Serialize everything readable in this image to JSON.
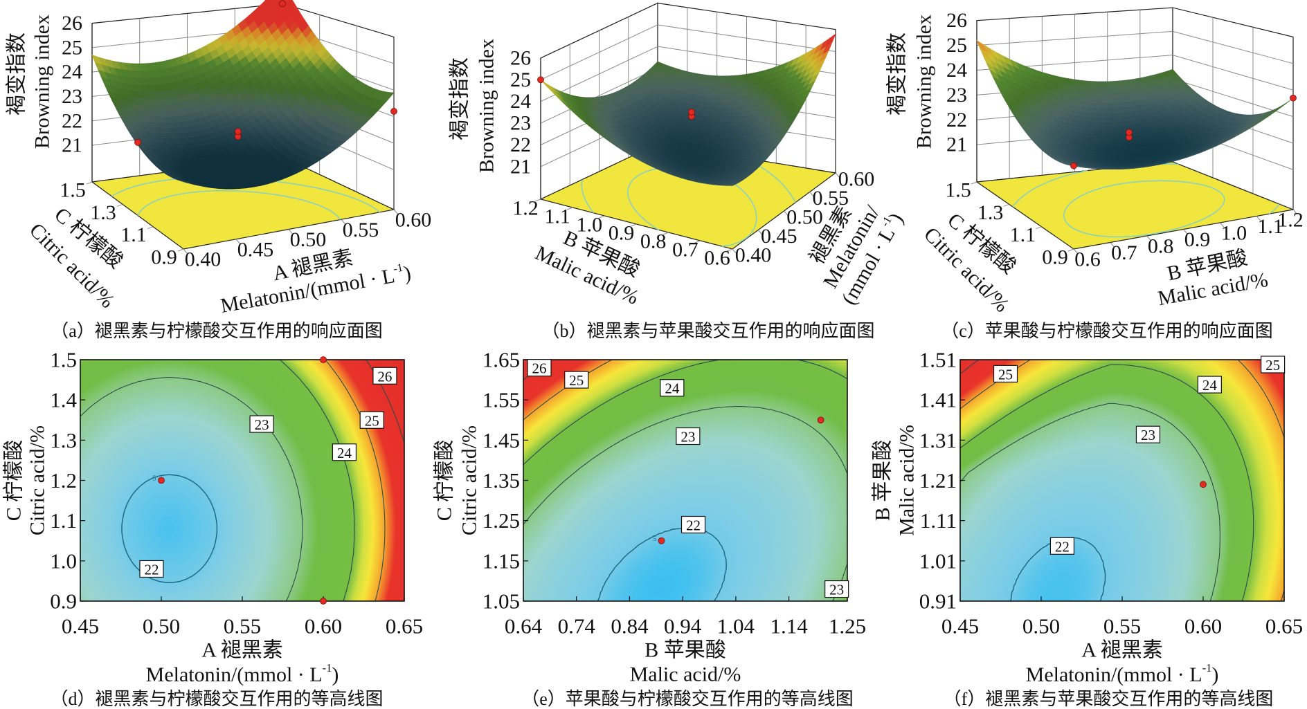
{
  "figure": {
    "colorscale": [
      [
        21.5,
        "#3cbff0"
      ],
      [
        22.1,
        "#7fcde6"
      ],
      [
        22.6,
        "#9dd5cf"
      ],
      [
        23.0,
        "#8cca86"
      ],
      [
        23.3,
        "#72bd46"
      ],
      [
        24.0,
        "#76be44"
      ],
      [
        24.3,
        "#cfe042"
      ],
      [
        24.6,
        "#f7e63a"
      ],
      [
        25.0,
        "#f6a32e"
      ],
      [
        25.35,
        "#e8332b"
      ],
      [
        28,
        "#e02a28"
      ]
    ],
    "floor_color": "#f1e63e",
    "floor_contour_color": "#8cd0c2",
    "point_color": "#e02a22"
  },
  "chart_data": [
    {
      "type": "surface",
      "caption": {
        "tag": "（a）",
        "text": "褪黑素与柠檬酸交互作用的响应面图"
      },
      "z_axis": {
        "label_cn": "褐变指数",
        "label_en": "Browning index",
        "ticks": [
          "21",
          "22",
          "23",
          "24",
          "25",
          "26"
        ],
        "range": [
          21,
          26
        ]
      },
      "x_axis": {
        "label_cn": "A 褪黑素",
        "label_en": {
          "pre": "Melatonin/(mmol · L",
          "sup": "-1",
          "post": ")"
        },
        "ticks": [
          "0.40",
          "0.45",
          "0.50",
          "0.55",
          "0.60"
        ],
        "range": [
          0.4,
          0.6
        ]
      },
      "y_axis": {
        "label_cn": "C 柠檬酸",
        "label_en": "Citric acid/%",
        "ticks": [
          "0.9",
          "1.1",
          "1.3",
          "1.5"
        ],
        "range": [
          0.9,
          1.5
        ]
      },
      "design_points": [
        {
          "x": 0.5,
          "y": 1.2,
          "z": 22.0
        },
        {
          "x": 0.5,
          "y": 1.2,
          "z": 22.2
        },
        {
          "x": 0.6,
          "y": 1.5,
          "z": 26.0
        },
        {
          "x": 0.6,
          "y": 0.9,
          "z": 23.2
        },
        {
          "x": 0.4,
          "y": 1.2,
          "z": 22.4
        }
      ]
    },
    {
      "type": "surface",
      "caption": {
        "tag": "（b）",
        "text": "褪黑素与苹果酸交互作用的响应面图"
      },
      "z_axis": {
        "label_cn": "褐变指数",
        "label_en": "Browning index",
        "ticks": [
          "21",
          "22",
          "23",
          "24",
          "25",
          "26"
        ],
        "range": [
          21,
          26
        ]
      },
      "x_axis": {
        "label_cn": "褪黑素",
        "label_en": "Melatonin/",
        "label_en2": {
          "pre": "(mmol · L",
          "sup": "-1",
          "post": ")"
        },
        "ticks": [
          "0.40",
          "0.45",
          "0.50",
          "0.55",
          "0.60"
        ],
        "range": [
          0.4,
          0.6
        ]
      },
      "y_axis": {
        "label_cn": "B 苹果酸",
        "label_en": "Malic acid/%",
        "ticks": [
          "0.6",
          "0.7",
          "0.8",
          "0.9",
          "1.0",
          "1.1",
          "1.2"
        ],
        "range": [
          0.6,
          1.2
        ]
      },
      "design_points": [
        {
          "x": 0.5,
          "y": 0.9,
          "z": 22.9
        },
        {
          "x": 0.5,
          "y": 0.9,
          "z": 23.1
        },
        {
          "x": 0.4,
          "y": 1.2,
          "z": 25.0
        }
      ]
    },
    {
      "type": "surface",
      "caption": {
        "tag": "（c）",
        "text": "苹果酸与柠檬酸交互作用的响应面图"
      },
      "z_axis": {
        "label_cn": "褐变指数",
        "label_en": "Browning index",
        "ticks": [
          "21",
          "22",
          "23",
          "24",
          "25",
          "26"
        ],
        "range": [
          21,
          26
        ]
      },
      "x_axis": {
        "label_cn": "B 苹果酸",
        "label_en": "Malic acid/%",
        "ticks": [
          "0.6",
          "0.7",
          "0.8",
          "0.9",
          "1.0",
          "1.1",
          "1.2"
        ],
        "range": [
          0.6,
          1.2
        ]
      },
      "y_axis": {
        "label_cn": "C 柠檬酸",
        "label_en": "Citric acid/%",
        "ticks": [
          "0.9",
          "1.1",
          "1.3",
          "1.5"
        ],
        "range": [
          0.9,
          1.5
        ]
      },
      "design_points": [
        {
          "x": 0.9,
          "y": 1.2,
          "z": 22.0
        },
        {
          "x": 0.9,
          "y": 1.2,
          "z": 22.2
        },
        {
          "x": 0.6,
          "y": 0.9,
          "z": 22.7
        },
        {
          "x": 1.2,
          "y": 0.9,
          "z": 23.7
        }
      ]
    },
    {
      "type": "contour",
      "caption": {
        "tag": "（d）",
        "text": "褪黑素与柠檬酸交互作用的等高线图"
      },
      "x_axis": {
        "label_cn": "A 褪黑素",
        "label_en": {
          "pre": "Melatonin/(mmol · L",
          "sup": "-1",
          "post": ")"
        },
        "ticks": [
          "0.45",
          "0.50",
          "0.55",
          "0.60",
          "0.65"
        ],
        "range": [
          0.45,
          0.65
        ]
      },
      "y_axis": {
        "label_cn": "C 柠檬酸",
        "label_en": "Citric acid/%",
        "ticks": [
          "0.9",
          "1.0",
          "1.1",
          "1.2",
          "1.3",
          "1.4",
          "1.5"
        ],
        "range": [
          0.9,
          1.5
        ]
      },
      "contour_levels": [
        22,
        23,
        24,
        25,
        26
      ],
      "contour_labels": [
        "26",
        "25",
        "24",
        "23",
        "22"
      ],
      "design_points": [
        {
          "x": 0.5,
          "y": 1.2,
          "label": "5"
        },
        {
          "x": 0.6,
          "y": 1.5
        },
        {
          "x": 0.6,
          "y": 0.9
        }
      ]
    },
    {
      "type": "contour",
      "caption": {
        "tag": "（e）",
        "text": "苹果酸与柠檬酸交互作用的等高线图"
      },
      "x_axis": {
        "label_cn": "B 苹果酸",
        "label_en": "Malic acid/%",
        "ticks": [
          "0.64",
          "0.74",
          "0.84",
          "0.94",
          "1.04",
          "1.14",
          "1.25"
        ],
        "range": [
          0.64,
          1.25
        ]
      },
      "y_axis": {
        "label_cn": "C 柠檬酸",
        "label_en": "Citric acid/%",
        "ticks": [
          "1.05",
          "1.15",
          "1.25",
          "1.35",
          "1.45",
          "1.55",
          "1.65"
        ],
        "range": [
          1.05,
          1.65
        ]
      },
      "contour_levels": [
        22,
        23,
        24,
        25,
        26
      ],
      "contour_labels": [
        "26",
        "25",
        "24",
        "23",
        "22",
        "23"
      ],
      "design_points": [
        {
          "x": 0.9,
          "y": 1.2,
          "label": "5"
        },
        {
          "x": 1.2,
          "y": 1.5
        }
      ]
    },
    {
      "type": "contour",
      "caption": {
        "tag": "（f）",
        "text": "褪黑素与苹果酸交互作用的等高线图"
      },
      "x_axis": {
        "label_cn": "A 褪黑素",
        "label_en": {
          "pre": "Melatonin/(mmol · L",
          "sup": "-1",
          "post": ")"
        },
        "ticks": [
          "0.45",
          "0.50",
          "0.55",
          "0.60",
          "0.65"
        ],
        "range": [
          0.45,
          0.65
        ]
      },
      "y_axis": {
        "label_cn": "B 苹果酸",
        "label_en": "Malic acid/%",
        "ticks": [
          "0.91",
          "1.01",
          "1.11",
          "1.21",
          "1.31",
          "1.41",
          "1.51"
        ],
        "range": [
          0.91,
          1.51
        ]
      },
      "contour_levels": [
        22,
        23,
        24,
        25,
        26
      ],
      "contour_labels": [
        "25",
        "25",
        "24",
        "23",
        "22"
      ],
      "design_points": [
        {
          "x": 0.6,
          "y": 1.2
        }
      ]
    }
  ]
}
